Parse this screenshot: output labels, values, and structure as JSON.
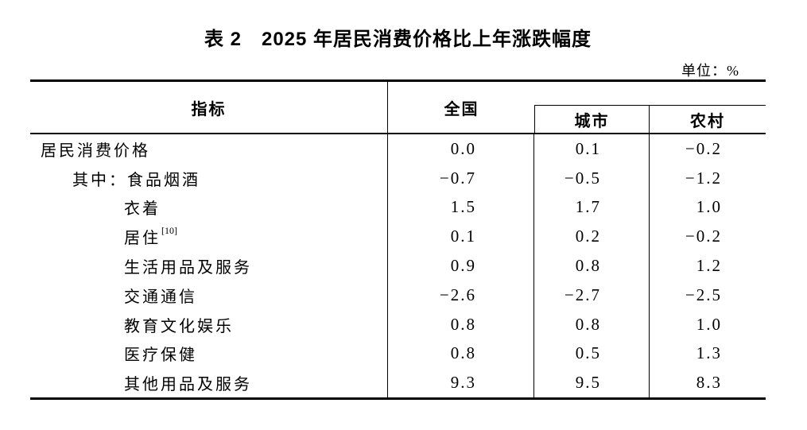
{
  "page": {
    "background": "#ffffff",
    "text_color": "#000000",
    "line_color": "#000000"
  },
  "title": "表 2　2025 年居民消费价格比上年涨跌幅度",
  "unit_label": "单位：%",
  "table": {
    "columns": {
      "indicator": "指标",
      "national": "全国",
      "urban": "城市",
      "rural": "农村"
    },
    "rows": [
      {
        "label": "居民消费价格",
        "sup": "",
        "indent": 0,
        "national": "0.0",
        "urban": "0.1",
        "rural": "−0.2"
      },
      {
        "label": "其中：食品烟酒",
        "sup": "",
        "indent": 1,
        "national": "−0.7",
        "urban": "−0.5",
        "rural": "−1.2"
      },
      {
        "label": "衣着",
        "sup": "",
        "indent": 2,
        "national": "1.5",
        "urban": "1.7",
        "rural": "1.0"
      },
      {
        "label": "居住",
        "sup": "[10]",
        "indent": 2,
        "national": "0.1",
        "urban": "0.2",
        "rural": "−0.2"
      },
      {
        "label": "生活用品及服务",
        "sup": "",
        "indent": 2,
        "national": "0.9",
        "urban": "0.8",
        "rural": "1.2"
      },
      {
        "label": "交通通信",
        "sup": "",
        "indent": 2,
        "national": "−2.6",
        "urban": "−2.7",
        "rural": "−2.5"
      },
      {
        "label": "教育文化娱乐",
        "sup": "",
        "indent": 2,
        "national": "0.8",
        "urban": "0.8",
        "rural": "1.0"
      },
      {
        "label": "医疗保健",
        "sup": "",
        "indent": 2,
        "national": "0.8",
        "urban": "0.5",
        "rural": "1.3"
      },
      {
        "label": "其他用品及服务",
        "sup": "",
        "indent": 2,
        "national": "9.3",
        "urban": "9.5",
        "rural": "8.3"
      }
    ]
  },
  "chart_data": {
    "type": "table",
    "title": "表 2 2025 年居民消费价格比上年涨跌幅度",
    "unit": "%",
    "columns": [
      "指标",
      "全国",
      "城市",
      "农村"
    ],
    "rows": [
      [
        "居民消费价格",
        0.0,
        0.1,
        -0.2
      ],
      [
        "其中：食品烟酒",
        -0.7,
        -0.5,
        -1.2
      ],
      [
        "衣着",
        1.5,
        1.7,
        1.0
      ],
      [
        "居住[10]",
        0.1,
        0.2,
        -0.2
      ],
      [
        "生活用品及服务",
        0.9,
        0.8,
        1.2
      ],
      [
        "交通通信",
        -2.6,
        -2.7,
        -2.5
      ],
      [
        "教育文化娱乐",
        0.8,
        0.8,
        1.0
      ],
      [
        "医疗保健",
        0.8,
        0.5,
        1.3
      ],
      [
        "其他用品及服务",
        9.3,
        9.5,
        8.3
      ]
    ]
  }
}
